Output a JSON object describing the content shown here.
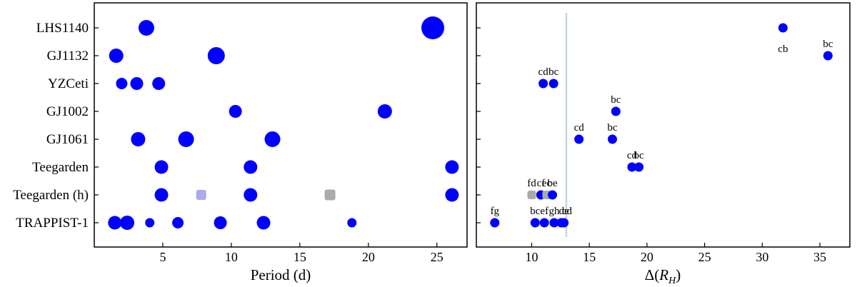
{
  "chart_data": [
    {
      "type": "scatter",
      "xlabel": "Period (d)",
      "xlim": [
        0,
        27.2
      ],
      "xticks": [
        5,
        10,
        15,
        20,
        25
      ],
      "systems": [
        "LHS1140",
        "GJ1132",
        "YZCeti",
        "GJ1002",
        "GJ1061",
        "Teegarden",
        "Teegarden (h)",
        "TRAPPIST-1"
      ],
      "colors": {
        "planet": "#0000ff",
        "hypothetical_light": "#aaaaee",
        "hypothetical_grey": "#aaaaaa"
      },
      "points": [
        {
          "system": "LHS1140",
          "x": 3.8,
          "size": 22
        },
        {
          "system": "LHS1140",
          "x": 24.7,
          "size": 32
        },
        {
          "system": "GJ1132",
          "x": 1.6,
          "size": 20
        },
        {
          "system": "GJ1132",
          "x": 8.9,
          "size": 24
        },
        {
          "system": "YZCeti",
          "x": 2.0,
          "size": 16
        },
        {
          "system": "YZCeti",
          "x": 3.1,
          "size": 18
        },
        {
          "system": "YZCeti",
          "x": 4.7,
          "size": 18
        },
        {
          "system": "GJ1002",
          "x": 10.3,
          "size": 18
        },
        {
          "system": "GJ1002",
          "x": 21.2,
          "size": 20
        },
        {
          "system": "GJ1061",
          "x": 3.2,
          "size": 20
        },
        {
          "system": "GJ1061",
          "x": 6.7,
          "size": 22
        },
        {
          "system": "GJ1061",
          "x": 13.0,
          "size": 22
        },
        {
          "system": "Teegarden",
          "x": 4.9,
          "size": 19
        },
        {
          "system": "Teegarden",
          "x": 11.4,
          "size": 19
        },
        {
          "system": "Teegarden",
          "x": 26.1,
          "size": 19
        },
        {
          "system": "Teegarden (h)",
          "x": 4.9,
          "size": 19
        },
        {
          "system": "Teegarden (h)",
          "x": 7.8,
          "size": 14,
          "shape": "square",
          "color": "hypothetical_light"
        },
        {
          "system": "Teegarden (h)",
          "x": 11.4,
          "size": 19
        },
        {
          "system": "Teegarden (h)",
          "x": 17.2,
          "size": 15,
          "shape": "square",
          "color": "hypothetical_grey"
        },
        {
          "system": "Teegarden (h)",
          "x": 26.1,
          "size": 19
        },
        {
          "system": "TRAPPIST-1",
          "x": 1.5,
          "size": 19
        },
        {
          "system": "TRAPPIST-1",
          "x": 2.4,
          "size": 20
        },
        {
          "system": "TRAPPIST-1",
          "x": 4.05,
          "size": 13
        },
        {
          "system": "TRAPPIST-1",
          "x": 6.1,
          "size": 16
        },
        {
          "system": "TRAPPIST-1",
          "x": 9.2,
          "size": 18
        },
        {
          "system": "TRAPPIST-1",
          "x": 12.35,
          "size": 19
        },
        {
          "system": "TRAPPIST-1",
          "x": 18.8,
          "size": 13
        }
      ]
    },
    {
      "type": "scatter",
      "xlabel": "Δ(R_H)",
      "xlim": [
        5.2,
        37.6
      ],
      "xticks": [
        10,
        15,
        20,
        25,
        30,
        35
      ],
      "vline": {
        "x": 13.0,
        "color": "#c5d5e0"
      },
      "points": [
        {
          "system": "LHS1140",
          "x": 31.8,
          "label": "cb",
          "label_pos": "below"
        },
        {
          "system": "GJ1132",
          "x": 35.7,
          "label": "bc",
          "label_pos": "above"
        },
        {
          "system": "YZCeti",
          "x": 11.0,
          "label": "cd",
          "label_pos": "above"
        },
        {
          "system": "YZCeti",
          "x": 11.9,
          "label": "bc",
          "label_pos": "above"
        },
        {
          "system": "GJ1002",
          "x": 17.3,
          "label": "bc",
          "label_pos": "above"
        },
        {
          "system": "GJ1061",
          "x": 14.1,
          "label": "cd",
          "label_pos": "above"
        },
        {
          "system": "GJ1061",
          "x": 17.0,
          "label": "bc",
          "label_pos": "above"
        },
        {
          "system": "Teegarden",
          "x": 18.7,
          "label": "cd",
          "label_pos": "above"
        },
        {
          "system": "Teegarden",
          "x": 19.3,
          "label": "bc",
          "label_pos": "above"
        },
        {
          "system": "Teegarden (h)",
          "x": 10.0,
          "label": "fd",
          "label_pos": "above",
          "color": "hypothetical_grey",
          "shape": "square"
        },
        {
          "system": "Teegarden (h)",
          "x": 10.8,
          "label": "cf",
          "label_pos": "above"
        },
        {
          "system": "Teegarden (h)",
          "x": 11.3,
          "label": "ec",
          "label_pos": "above",
          "color": "hypothetical_grey",
          "shape": "square"
        },
        {
          "system": "Teegarden (h)",
          "x": 11.8,
          "label": "be",
          "label_pos": "above"
        },
        {
          "system": "TRAPPIST-1",
          "x": 6.8,
          "label": "fg",
          "label_pos": "above"
        },
        {
          "system": "TRAPPIST-1",
          "x": 10.3,
          "label": "bc",
          "label_pos": "above"
        },
        {
          "system": "TRAPPIST-1",
          "x": 11.1,
          "label": "ef",
          "label_pos": "above"
        },
        {
          "system": "TRAPPIST-1",
          "x": 11.95,
          "label": "gh",
          "label_pos": "above"
        },
        {
          "system": "TRAPPIST-1",
          "x": 12.8,
          "label": "de",
          "label_pos": "above"
        },
        {
          "system": "TRAPPIST-1",
          "x": 13.0,
          "label": "cd",
          "label_pos": "above_right"
        }
      ]
    }
  ]
}
